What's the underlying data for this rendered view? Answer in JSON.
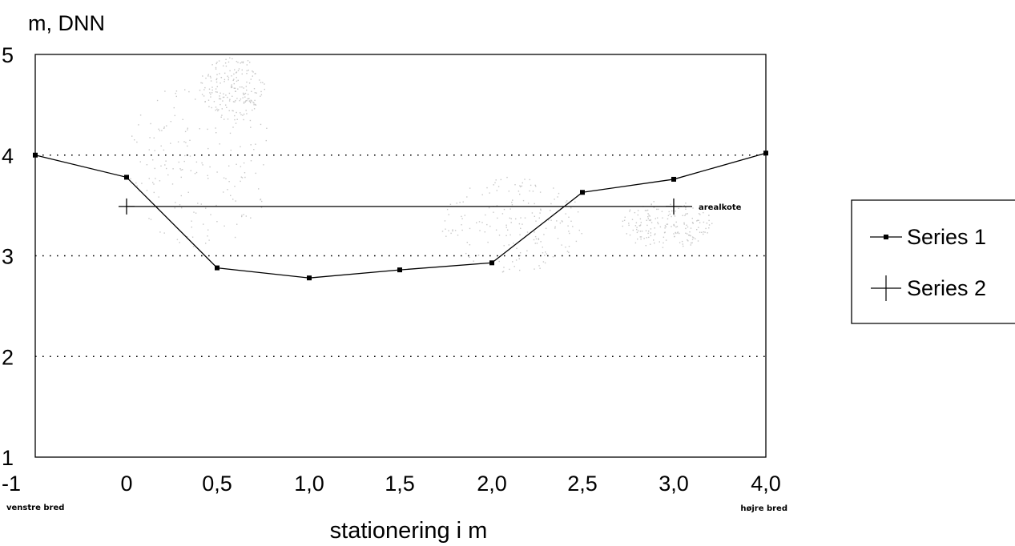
{
  "chart_data": {
    "type": "line",
    "ylabel": "m, DNN",
    "xlabel": "stationering i m",
    "ylim": [
      1,
      5
    ],
    "yticks": [
      1,
      2,
      3,
      4,
      5
    ],
    "x_categories": [
      "-1",
      "0",
      "0,5",
      "1,0",
      "1,5",
      "2,0",
      "2,5",
      "3,0",
      "4,0"
    ],
    "x_sub_labels": {
      "first": "venstre bred",
      "last": "højre bred"
    },
    "grid": {
      "y_dotted_at": [
        2,
        3,
        4
      ]
    },
    "series": [
      {
        "name": "Series 1",
        "marker": "square",
        "x_index": [
          0,
          1,
          2,
          3,
          4,
          5,
          6,
          7,
          8
        ],
        "values": [
          4.0,
          3.78,
          2.88,
          2.78,
          2.86,
          2.93,
          3.63,
          3.76,
          4.02
        ]
      },
      {
        "name": "Series 2",
        "marker": "plus",
        "x_index": [
          1,
          7
        ],
        "values": [
          3.49,
          3.49
        ],
        "annotation": "arealkote"
      }
    ],
    "legend": {
      "position": "right",
      "entries": [
        "Series 1",
        "Series 2"
      ]
    }
  }
}
